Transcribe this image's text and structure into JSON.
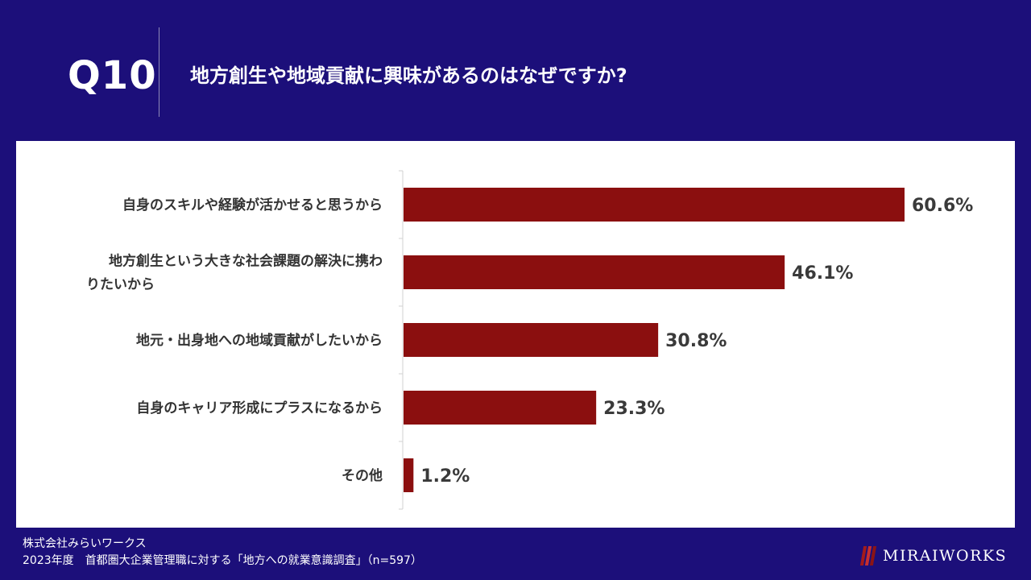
{
  "header": {
    "question_number": "Q10",
    "question_title": "地方創生や地域貢献に興味があるのはなぜですか?"
  },
  "footer": {
    "company": "株式会社みらいワークス",
    "survey": "2023年度　首都圏大企業管理職に対する「地方への就業意識調査」（n=597）",
    "logo_text": "MIRAIWORKS"
  },
  "colors": {
    "background": "#1c0f7a",
    "bar": "#8b0f0f",
    "label_text": "#3a3a3a"
  },
  "chart_data": {
    "type": "bar",
    "orientation": "horizontal",
    "categories": [
      [
        "自身のスキルや経験が活かせると思うから"
      ],
      [
        "地方創生という大きな社会課題の解決に携わ",
        "りたいから"
      ],
      [
        "地元・出身地への地域貢献がしたいから"
      ],
      [
        "自身のキャリア形成にプラスになるから"
      ],
      [
        "その他"
      ]
    ],
    "values": [
      60.6,
      46.1,
      30.8,
      23.3,
      1.2
    ],
    "value_labels": [
      "60.6%",
      "46.1%",
      "30.8%",
      "23.3%",
      "1.2%"
    ],
    "unit": "%",
    "xlim": [
      0,
      70
    ],
    "grid": false,
    "legend": "none"
  }
}
